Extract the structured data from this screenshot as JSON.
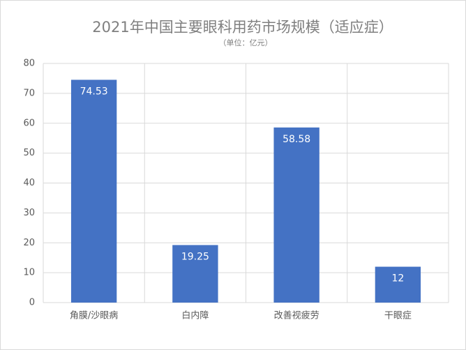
{
  "chart_data": {
    "type": "bar",
    "title": "2021年中国主要眼科用药市场规模（适应症）",
    "subtitle": "（单位：亿元）",
    "categories": [
      "角膜/沙眼病",
      "白内障",
      "改善视疲劳",
      "干眼症"
    ],
    "values": [
      74.53,
      19.25,
      58.58,
      12
    ],
    "color": "#4472c4",
    "ylim": [
      0,
      80
    ],
    "yticks": [
      0,
      10,
      20,
      30,
      40,
      50,
      60,
      70,
      80
    ],
    "grid": true
  }
}
